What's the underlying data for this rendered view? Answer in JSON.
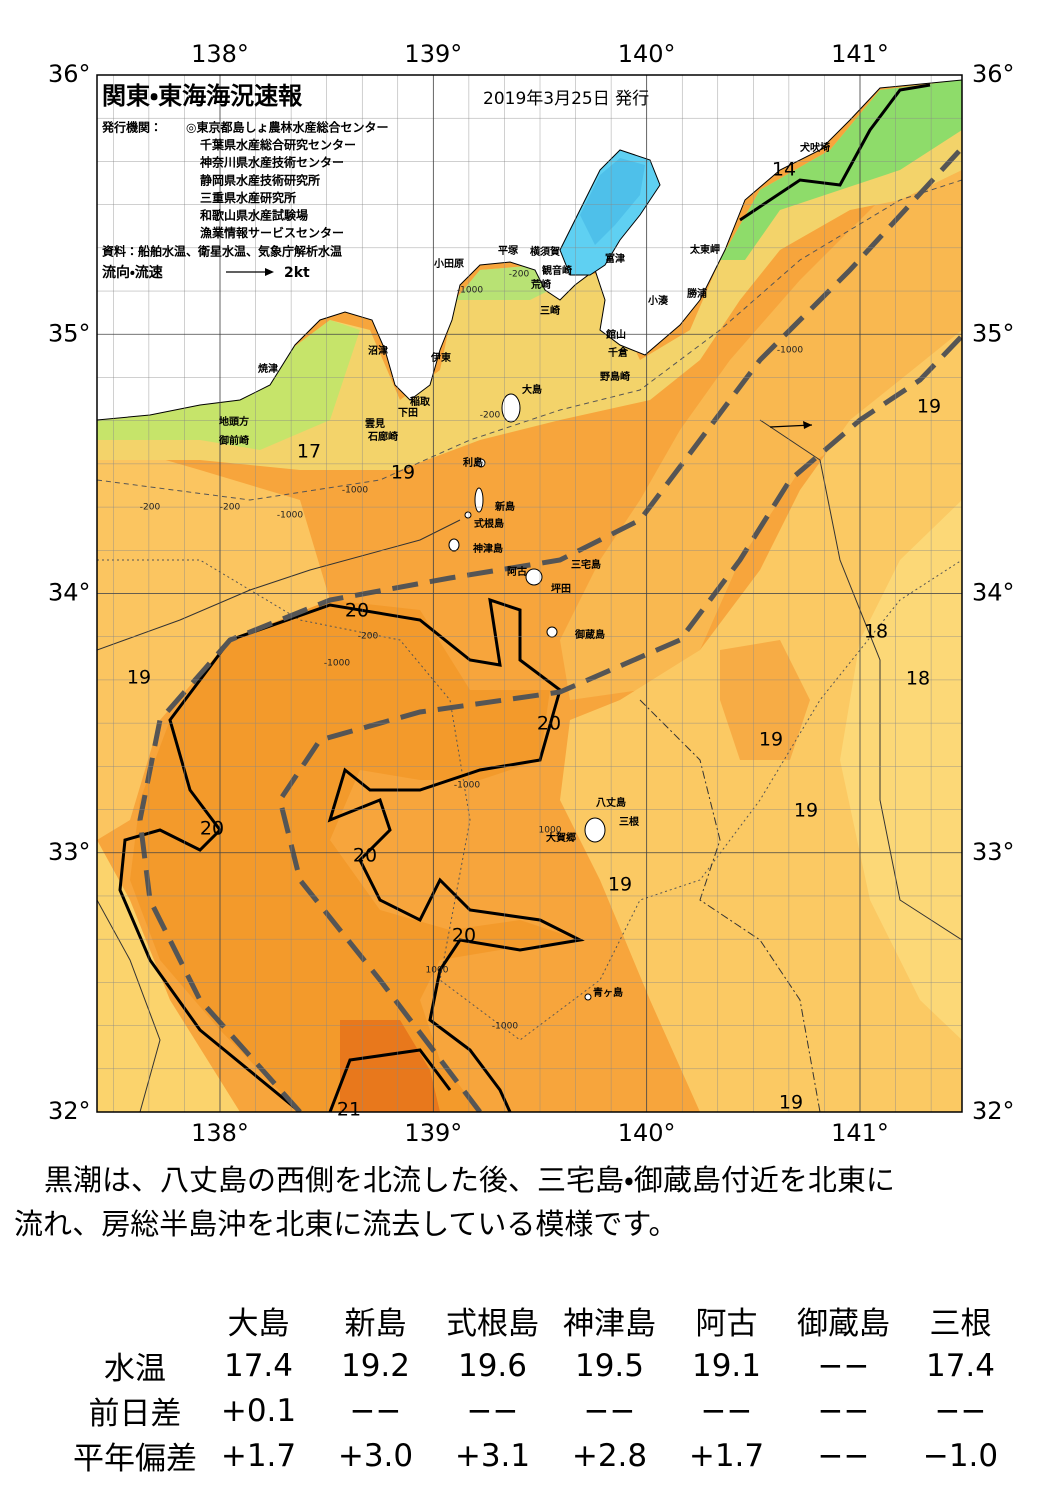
{
  "header": {
    "title": "関東・東海海況速報",
    "date": "2019年3月25日 発行",
    "issuer_label": "発行機関：",
    "issuers": [
      "◎東京都島しょ農林水産総合センター",
      "千葉県水産総合研究センター",
      "神奈川県水産技術センター",
      "静岡県水産技術研究所",
      "三重県水産研究所",
      "和歌山県水産試験場",
      "漁業情報サービスセンター"
    ],
    "sources": "資料：船舶水温、衛星水温、気象庁解析水温",
    "legend": {
      "label": "流向・流速",
      "speed": "2kt"
    }
  },
  "map": {
    "lon_ticks": [
      {
        "value": 138,
        "label": "138°"
      },
      {
        "value": 139,
        "label": "139°"
      },
      {
        "value": 140,
        "label": "140°"
      },
      {
        "value": 141,
        "label": "141°"
      }
    ],
    "lat_ticks": [
      {
        "value": 36,
        "label": "36°"
      },
      {
        "value": 35,
        "label": "35°"
      },
      {
        "value": 34,
        "label": "34°"
      },
      {
        "value": 33,
        "label": "33°"
      },
      {
        "value": 32,
        "label": "32°"
      }
    ],
    "places": [
      "犬吠埼",
      "太東岬",
      "勝浦",
      "小湊",
      "館山",
      "千倉",
      "野島崎",
      "富津",
      "横須賀",
      "観音崎",
      "荒崎",
      "三崎",
      "平塚",
      "小田原",
      "沼津",
      "伊東",
      "稲取",
      "下田",
      "雲見",
      "石廊崎",
      "焼津",
      "地頭方",
      "御前崎",
      "大島",
      "利島",
      "新島",
      "式根島",
      "神津島",
      "三宅島",
      "阿古",
      "坪田",
      "御蔵島",
      "八丈島",
      "三根",
      "大賀郷",
      "青ヶ島"
    ],
    "isotherm_labels": [
      14,
      17,
      19,
      20,
      19,
      20,
      19,
      20,
      19,
      20,
      19,
      20,
      21,
      19,
      18,
      18,
      19
    ],
    "depth_labels": [
      -200,
      -1000,
      -200,
      -200,
      -1000,
      -200,
      -1000,
      -200,
      -1000,
      -1000,
      -1000,
      1000,
      1000,
      -1000
    ]
  },
  "summary": [
    "黒潮は、八丈島の西側を北流した後、三宅島・御蔵島付近を北東に",
    "流れ、房総半島沖を北東に流去している模様です。"
  ],
  "table": {
    "columns": [
      "大島",
      "新島",
      "式根島",
      "神津島",
      "阿古",
      "御蔵島",
      "三根"
    ],
    "rows": [
      {
        "label": "水温",
        "cells": [
          "17.4",
          "19.2",
          "19.6",
          "19.5",
          "19.1",
          "−−",
          "17.4"
        ]
      },
      {
        "label": "前日差",
        "cells": [
          "+0.1",
          "−−",
          "−−",
          "−−",
          "−−",
          "−−",
          "−−"
        ]
      },
      {
        "label": "平年偏差",
        "cells": [
          "+1.7",
          "+3.0",
          "+3.1",
          "+2.8",
          "+1.7",
          "−−",
          "−1.0"
        ]
      }
    ]
  }
}
